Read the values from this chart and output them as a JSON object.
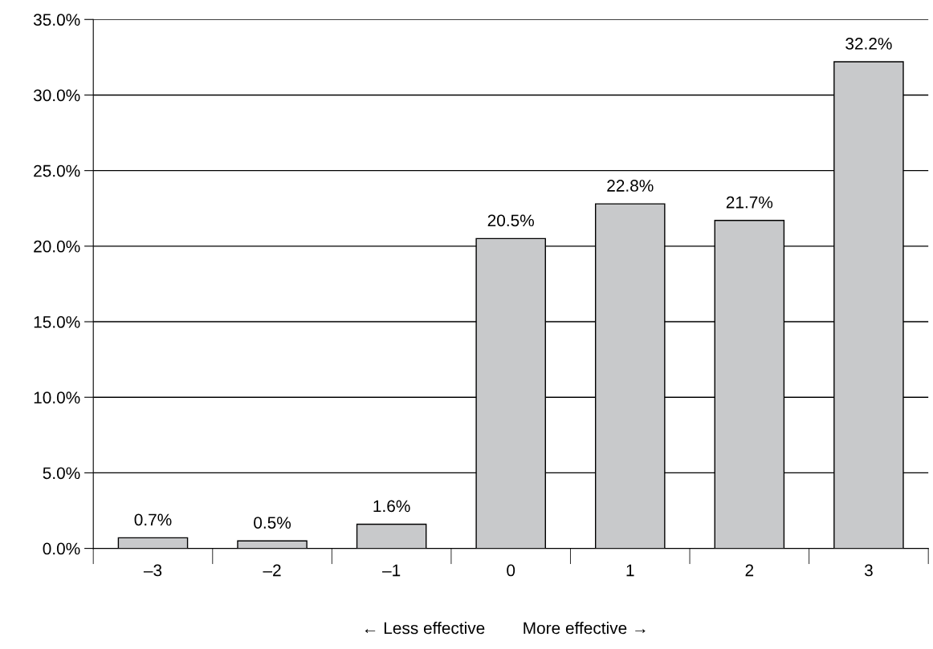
{
  "chart_data": {
    "type": "bar",
    "categories": [
      "–3",
      "–2",
      "–1",
      "0",
      "1",
      "2",
      "3"
    ],
    "values": [
      0.7,
      0.5,
      1.6,
      20.5,
      22.8,
      21.7,
      32.2
    ],
    "color": "#c8c9cb",
    "value_labels": [
      "0.7%",
      "0.5%",
      "1.6%",
      "20.5%",
      "22.8%",
      "21.7%",
      "32.2%"
    ],
    "ylim": [
      0,
      35
    ],
    "yticks": [
      {
        "value": 0,
        "label": "0.0%"
      },
      {
        "value": 5,
        "label": "5.0%"
      },
      {
        "value": 10,
        "label": "10.0%"
      },
      {
        "value": 15,
        "label": "15.0%"
      },
      {
        "value": 20,
        "label": "20.0%"
      },
      {
        "value": 25,
        "label": "25.0%"
      },
      {
        "value": 30,
        "label": "30.0%"
      },
      {
        "value": 35,
        "label": "35.0%"
      }
    ],
    "grid": "y",
    "annotations": [
      "← Less effective",
      "More effective →"
    ]
  }
}
